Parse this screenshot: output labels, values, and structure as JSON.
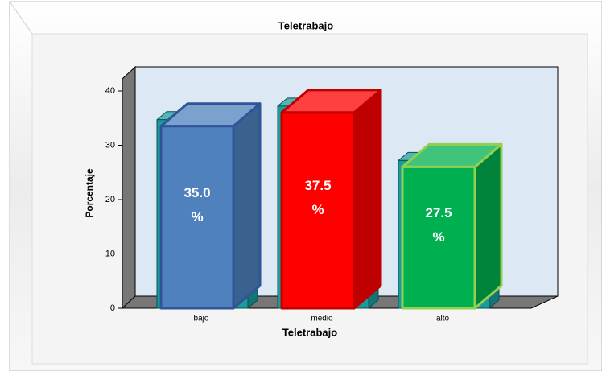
{
  "chart_data": {
    "type": "bar3d",
    "title": "Teletrabajo",
    "xlabel": "Teletrabajo",
    "ylabel": "Porcentaje",
    "categories": [
      "bajo",
      "medio",
      "alto"
    ],
    "values": [
      35.0,
      37.5,
      27.5
    ],
    "value_labels": [
      "35.0 %",
      "37.5 %",
      "27.5 %"
    ],
    "colors": [
      "#4f81bd",
      "#ff0000",
      "#00b050"
    ],
    "edge_colors": [
      "#2f5597",
      "#c00000",
      "#92d050"
    ],
    "ylim": [
      0,
      40
    ],
    "yticks": [
      0,
      10,
      20,
      30,
      40
    ]
  }
}
